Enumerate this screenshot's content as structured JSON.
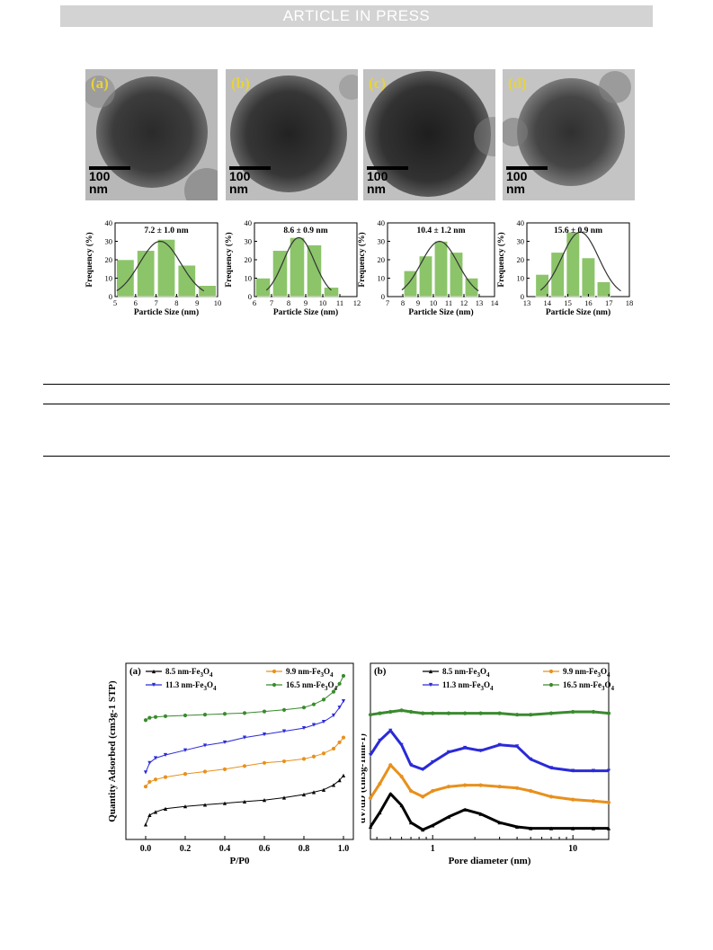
{
  "header": {
    "banner": "ARTICLE IN PRESS"
  },
  "tem_panels": [
    {
      "letter": "(a)",
      "scale": "100 nm"
    },
    {
      "letter": "(b)",
      "scale": "100 nm"
    },
    {
      "letter": "(c)",
      "scale": "100 nm"
    },
    {
      "letter": "(d)",
      "scale": "100 nm"
    }
  ],
  "chart_data": [
    {
      "type": "bar",
      "annotation": "7.2 ± 1.0 nm",
      "xlabel": "Particle Size (nm)",
      "ylabel": "Frequency (%)",
      "xlim": [
        5,
        10
      ],
      "ylim": [
        0,
        40
      ],
      "xticks": [
        "5",
        "6",
        "7",
        "8",
        "9",
        "10"
      ],
      "yticks": [
        "0",
        "10",
        "20",
        "30",
        "40"
      ],
      "bins": [
        5.5,
        6.5,
        7.5,
        8.5,
        9.5
      ],
      "values": [
        20,
        25,
        31,
        17,
        6
      ],
      "fit": {
        "mean": 7.2,
        "sd": 1.0,
        "peak": 30
      },
      "color": "#8cc46a"
    },
    {
      "type": "bar",
      "annotation": "8.6 ± 0.9 nm",
      "xlabel": "Particle Size (nm)",
      "ylabel": "Frequency (%)",
      "xlim": [
        6,
        12
      ],
      "ylim": [
        0,
        40
      ],
      "xticks": [
        "6",
        "7",
        "8",
        "9",
        "10",
        "11",
        "12"
      ],
      "yticks": [
        "0",
        "10",
        "20",
        "30",
        "40"
      ],
      "bins": [
        6.5,
        7.5,
        8.5,
        9.5,
        10.5
      ],
      "values": [
        10,
        25,
        32,
        28,
        5
      ],
      "fit": {
        "mean": 8.6,
        "sd": 0.9,
        "peak": 32
      },
      "color": "#8cc46a"
    },
    {
      "type": "bar",
      "annotation": "10.4 ± 1.2 nm",
      "xlabel": "Particle Size (nm)",
      "ylabel": "Frequency (%)",
      "xlim": [
        7,
        14
      ],
      "ylim": [
        0,
        40
      ],
      "xticks": [
        "7",
        "8",
        "9",
        "10",
        "11",
        "12",
        "13",
        "14"
      ],
      "yticks": [
        "0",
        "10",
        "20",
        "30",
        "40"
      ],
      "bins": [
        8.5,
        9.5,
        10.5,
        11.5,
        12.5,
        13.5
      ],
      "values": [
        14,
        22,
        30,
        24,
        10,
        0
      ],
      "fit": {
        "mean": 10.4,
        "sd": 1.2,
        "peak": 30
      },
      "color": "#8cc46a"
    },
    {
      "type": "bar",
      "annotation": "15.6 ± 0.9 nm",
      "xlabel": "Particle Size (nm)",
      "ylabel": "Frequency (%)",
      "xlim": [
        13,
        18
      ],
      "ylim": [
        0,
        40
      ],
      "xticks": [
        "13",
        "14",
        "15",
        "16",
        "17",
        "18"
      ],
      "yticks": [
        "0",
        "10",
        "20",
        "30",
        "40"
      ],
      "bins": [
        13.75,
        14.5,
        15.25,
        16.0,
        16.75
      ],
      "values": [
        12,
        24,
        35,
        21,
        8
      ],
      "fit": {
        "mean": 15.6,
        "sd": 0.9,
        "peak": 35
      },
      "color": "#8cc46a"
    },
    {
      "type": "line",
      "panel": "(a)",
      "xlabel": "P/P0",
      "ylabel": "Quantity Adsorbed (cm3g-1 STP)",
      "xlim": [
        -0.1,
        1.05
      ],
      "xticks": [
        "0.0",
        "0.2",
        "0.4",
        "0.6",
        "0.8",
        "1.0"
      ],
      "ylim": [
        0,
        100
      ],
      "legend": "top",
      "series": [
        {
          "name": "8.5 nm-Fe3O4",
          "color": "#000000",
          "marker": "triangle",
          "x": [
            0.0,
            0.02,
            0.05,
            0.1,
            0.2,
            0.3,
            0.4,
            0.5,
            0.6,
            0.7,
            0.8,
            0.85,
            0.9,
            0.95,
            0.98,
            1.0
          ],
          "y": [
            6,
            12,
            14,
            16,
            17.5,
            18.5,
            19.5,
            20.5,
            21.5,
            23,
            25,
            26.5,
            28,
            31,
            34,
            37
          ]
        },
        {
          "name": "9.9 nm-Fe3O4",
          "color": "#e8901c",
          "marker": "circle",
          "x": [
            0.0,
            0.02,
            0.05,
            0.1,
            0.2,
            0.3,
            0.4,
            0.5,
            0.6,
            0.7,
            0.8,
            0.85,
            0.9,
            0.95,
            0.98,
            1.0
          ],
          "y": [
            30,
            33,
            34.5,
            36,
            38,
            39.5,
            41,
            43,
            45,
            46,
            47.5,
            49,
            51,
            54,
            58,
            61
          ]
        },
        {
          "name": "11.3 nm-Fe3O4",
          "color": "#2a2ad8",
          "marker": "triangle-down",
          "x": [
            0.0,
            0.02,
            0.05,
            0.1,
            0.2,
            0.3,
            0.4,
            0.5,
            0.6,
            0.7,
            0.8,
            0.85,
            0.9,
            0.95,
            0.98,
            1.0
          ],
          "y": [
            39,
            45,
            48,
            50,
            53,
            56,
            58,
            61,
            63,
            65,
            67,
            69,
            71,
            75,
            80,
            84
          ]
        },
        {
          "name": "16.5 nm-Fe3O4",
          "color": "#3a8a2e",
          "marker": "circle",
          "x": [
            0.0,
            0.02,
            0.05,
            0.1,
            0.2,
            0.3,
            0.4,
            0.5,
            0.6,
            0.7,
            0.8,
            0.85,
            0.9,
            0.95,
            0.98,
            1.0
          ],
          "y": [
            72,
            73.5,
            74,
            74.5,
            75,
            75.5,
            76,
            76.5,
            77.5,
            78.5,
            80,
            82,
            85,
            90,
            95,
            100
          ]
        }
      ]
    },
    {
      "type": "line",
      "panel": "(b)",
      "xlabel": "Pore diameter (nm)",
      "ylabel": "dV/dD (cm3g-1nm-1)",
      "xscale": "log",
      "xlim": [
        0.36,
        18
      ],
      "xticks": [
        "1",
        "10"
      ],
      "ylim": [
        0,
        100
      ],
      "legend": "top",
      "series": [
        {
          "name": "8.5 nm-Fe3O4",
          "color": "#000000",
          "marker": "triangle",
          "x": [
            0.36,
            0.42,
            0.5,
            0.6,
            0.7,
            0.85,
            1.0,
            1.3,
            1.7,
            2.2,
            3,
            4,
            5,
            7,
            10,
            14,
            18
          ],
          "y": [
            5,
            15,
            28,
            20,
            8,
            3,
            6,
            12,
            17,
            14,
            8,
            5,
            4,
            4,
            4,
            4,
            4
          ]
        },
        {
          "name": "9.9 nm-Fe3O4",
          "color": "#e8901c",
          "marker": "circle",
          "x": [
            0.36,
            0.42,
            0.5,
            0.6,
            0.7,
            0.85,
            1.0,
            1.3,
            1.7,
            2.2,
            3,
            4,
            5,
            7,
            10,
            14,
            18
          ],
          "y": [
            25,
            35,
            48,
            40,
            30,
            26,
            30,
            33,
            34,
            34,
            33,
            32,
            30,
            26,
            24,
            23,
            22
          ]
        },
        {
          "name": "11.3 nm-Fe3O4",
          "color": "#2a2ad8",
          "marker": "triangle-down",
          "x": [
            0.36,
            0.42,
            0.5,
            0.6,
            0.7,
            0.85,
            1.0,
            1.3,
            1.7,
            2.2,
            3,
            4,
            5,
            7,
            10,
            14,
            18
          ],
          "y": [
            55,
            65,
            72,
            62,
            48,
            45,
            50,
            57,
            60,
            58,
            62,
            61,
            52,
            46,
            44,
            44,
            44
          ]
        },
        {
          "name": "16.5 nm-Fe3O4",
          "color": "#3a8a2e",
          "marker": "circle",
          "x": [
            0.36,
            0.42,
            0.5,
            0.6,
            0.7,
            0.85,
            1.0,
            1.3,
            1.7,
            2.2,
            3,
            4,
            5,
            7,
            10,
            14,
            18
          ],
          "y": [
            83,
            84,
            85,
            86,
            85,
            84,
            84,
            84,
            84,
            84,
            84,
            83,
            83,
            84,
            85,
            85,
            84
          ]
        }
      ]
    }
  ]
}
